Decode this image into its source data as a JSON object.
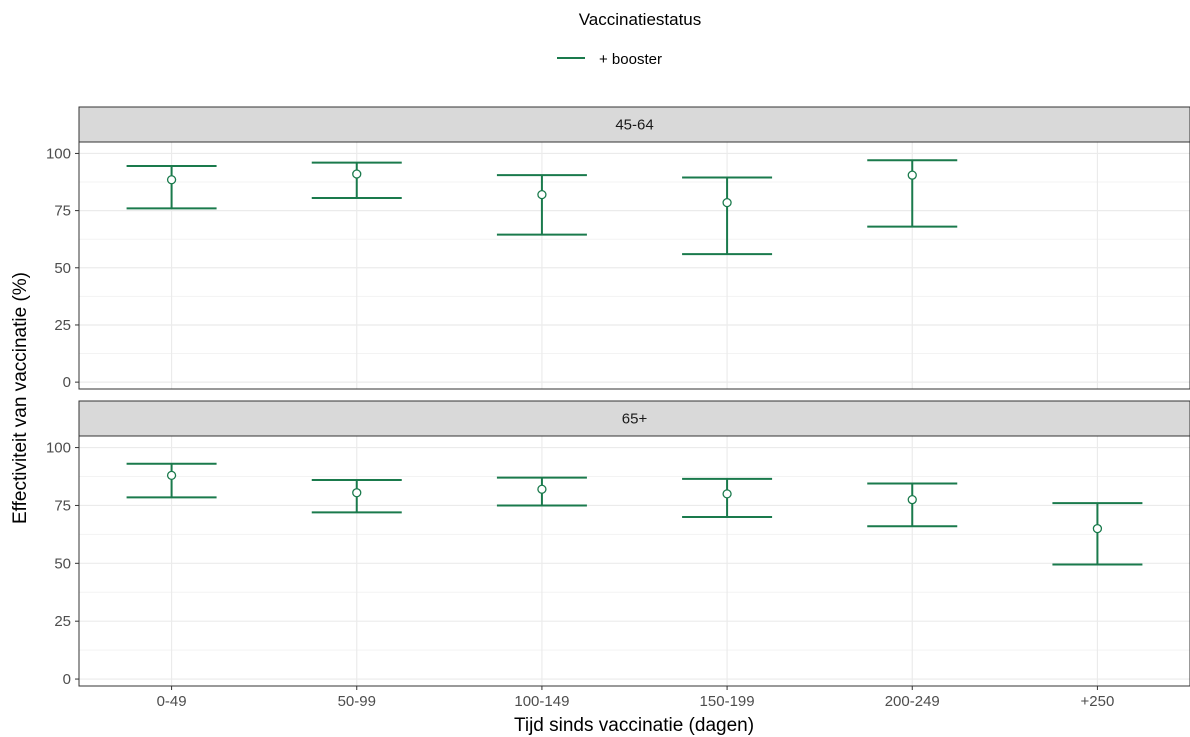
{
  "chart_data": {
    "type": "errorbar",
    "legend": {
      "title": "Vaccinatiestatus",
      "position": "top",
      "entries": [
        {
          "label": "+ booster",
          "color": "#1a7a4c"
        }
      ]
    },
    "xlabel": "Tijd sinds vaccinatie (dagen)",
    "ylabel": "Effectiviteit van vaccinatie (%)",
    "categories": [
      "0-49",
      "50-99",
      "100-149",
      "150-199",
      "200-249",
      "+250"
    ],
    "ylim": [
      -3,
      105
    ],
    "yticks": [
      0,
      25,
      50,
      75,
      100
    ],
    "grid": true,
    "colors": {
      "series": "#1a7a4c",
      "strip_fill": "#d9d9d9",
      "grid": "#ebebeb",
      "frame": "#333333"
    },
    "panels": [
      {
        "strip": "45-64",
        "series_name": "+ booster",
        "points": [
          {
            "x": "0-49",
            "y": 88.5,
            "lower": 76,
            "upper": 94.5
          },
          {
            "x": "50-99",
            "y": 91,
            "lower": 80.5,
            "upper": 96
          },
          {
            "x": "100-149",
            "y": 82,
            "lower": 64.5,
            "upper": 90.5
          },
          {
            "x": "150-199",
            "y": 78.5,
            "lower": 56,
            "upper": 89.5
          },
          {
            "x": "200-249",
            "y": 90.5,
            "lower": 68,
            "upper": 97
          }
        ]
      },
      {
        "strip": "65+",
        "series_name": "+ booster",
        "points": [
          {
            "x": "0-49",
            "y": 88,
            "lower": 78.5,
            "upper": 93
          },
          {
            "x": "50-99",
            "y": 80.5,
            "lower": 72,
            "upper": 86
          },
          {
            "x": "100-149",
            "y": 82,
            "lower": 75,
            "upper": 87
          },
          {
            "x": "150-199",
            "y": 80,
            "lower": 70,
            "upper": 86.5
          },
          {
            "x": "200-249",
            "y": 77.5,
            "lower": 66,
            "upper": 84.5
          },
          {
            "x": "+250",
            "y": 65,
            "lower": 49.5,
            "upper": 76
          }
        ]
      }
    ]
  }
}
